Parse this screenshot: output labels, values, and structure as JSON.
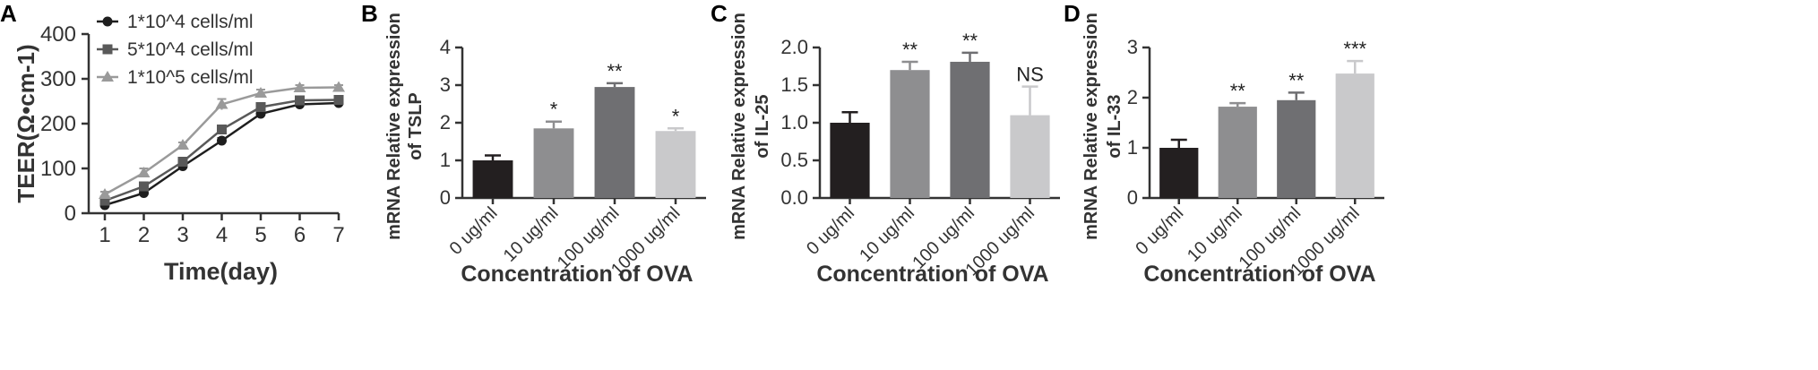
{
  "chart_data": [
    {
      "panel": "A",
      "type": "line",
      "title": "",
      "xlabel": "Time(day)",
      "ylabel": "TEER(Ω•cm-1)",
      "x": [
        1,
        2,
        3,
        4,
        5,
        6,
        7
      ],
      "xlim": [
        1,
        7
      ],
      "ylim": [
        0,
        400
      ],
      "yticks": [
        0,
        100,
        200,
        300,
        400
      ],
      "legend_position": "top-left",
      "series": [
        {
          "name": "1*10^4 cells/ml",
          "marker": "circle",
          "color": "#1e1e1e",
          "values": [
            18,
            45,
            105,
            162,
            222,
            243,
            246
          ],
          "errors": [
            5,
            6,
            6,
            6,
            6,
            6,
            6
          ]
        },
        {
          "name": "5*10^4 cells/ml",
          "marker": "square",
          "color": "#595959",
          "values": [
            28,
            60,
            115,
            187,
            237,
            252,
            253
          ],
          "errors": [
            5,
            6,
            6,
            6,
            6,
            6,
            6
          ]
        },
        {
          "name": "1*10^5 cells/ml",
          "marker": "triangle",
          "color": "#9a9a9a",
          "values": [
            42,
            90,
            152,
            243,
            268,
            280,
            281
          ],
          "errors": [
            6,
            10,
            6,
            12,
            8,
            6,
            5
          ]
        }
      ]
    },
    {
      "panel": "B",
      "type": "bar",
      "xlabel": "Concentration of OVA",
      "ylabel": [
        "mRNA Relative expression",
        "of TSLP"
      ],
      "categories": [
        "0 ug/ml",
        "10 ug/ml",
        "100 ug/ml",
        "1000 ug/ml"
      ],
      "values": [
        1.0,
        1.85,
        2.95,
        1.78
      ],
      "errors": [
        0.13,
        0.18,
        0.1,
        0.07
      ],
      "significance": [
        "",
        "*",
        "**",
        "*"
      ],
      "colors": [
        "#231f20",
        "#8e8e90",
        "#6f6f72",
        "#c9c9cb"
      ],
      "ylim": [
        0,
        4
      ],
      "yticks": [
        "0",
        "1",
        "2",
        "3",
        "4"
      ]
    },
    {
      "panel": "C",
      "type": "bar",
      "xlabel": "Concentration of OVA",
      "ylabel": [
        "mRNA Relative expression",
        "of IL-25"
      ],
      "categories": [
        "0 ug/ml",
        "10 ug/ml",
        "100 ug/ml",
        "1000 ug/ml"
      ],
      "values": [
        1.0,
        1.7,
        1.81,
        1.1
      ],
      "errors": [
        0.14,
        0.11,
        0.12,
        0.38
      ],
      "significance": [
        "",
        "**",
        "**",
        "NS"
      ],
      "colors": [
        "#231f20",
        "#8e8e90",
        "#6f6f72",
        "#c9c9cb"
      ],
      "ylim": [
        0,
        2
      ],
      "yticks": [
        "0.0",
        "0.5",
        "1.0",
        "1.5",
        "2.0"
      ]
    },
    {
      "panel": "D",
      "type": "bar",
      "xlabel": "Concentration of OVA",
      "ylabel": [
        "mRNA Relative expression",
        "of IL-33"
      ],
      "categories": [
        "0 ug/ml",
        "10 ug/ml",
        "100 ug/ml",
        "1000 ug/ml"
      ],
      "values": [
        1.0,
        1.82,
        1.95,
        2.48
      ],
      "errors": [
        0.16,
        0.07,
        0.15,
        0.25
      ],
      "significance": [
        "",
        "**",
        "**",
        "***"
      ],
      "colors": [
        "#231f20",
        "#8e8e90",
        "#6f6f72",
        "#c9c9cb"
      ],
      "ylim": [
        0,
        3
      ],
      "yticks": [
        "0",
        "1",
        "2",
        "3"
      ]
    }
  ]
}
